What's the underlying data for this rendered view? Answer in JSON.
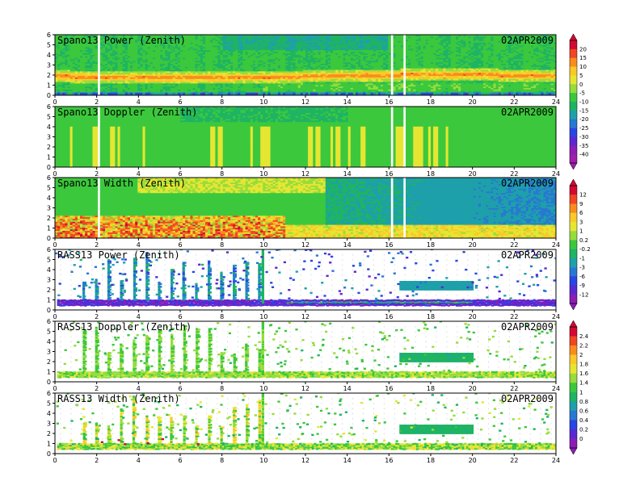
{
  "chart_data": [
    {
      "type": "heatmap",
      "title": "Spano13 Power (Zenith)",
      "date": "02APR2009",
      "x_ticks": [
        "0",
        "2",
        "4",
        "6",
        "8",
        "10",
        "12",
        "14",
        "16",
        "18",
        "20",
        "22",
        "24"
      ],
      "y_ticks": [
        "0",
        "1",
        "2",
        "3",
        "4",
        "5",
        "6"
      ],
      "xlim": [
        0,
        24
      ],
      "ylim": [
        0,
        6
      ],
      "colorbar_ticks": [
        "20",
        "15",
        "10",
        "5",
        "0",
        "-5",
        "-10",
        "-15",
        "-20",
        "-25",
        "-30",
        "-35",
        "-40"
      ],
      "pattern": "power",
      "data_gaps_x": [
        2.1,
        16.1,
        16.7
      ],
      "features": "band of high power (yellow/orange/red) near 1.5-2.2 km across whole day; weak (blue/purple) bins near 0.2 km"
    },
    {
      "type": "heatmap",
      "title": "Spano13 Doppler (Zenith)",
      "date": "02APR2009",
      "x_ticks": [
        "0",
        "2",
        "4",
        "6",
        "8",
        "10",
        "12",
        "14",
        "16",
        "18",
        "20",
        "22",
        "24"
      ],
      "y_ticks": [
        "0",
        "1",
        "2",
        "3",
        "4",
        "5",
        "6"
      ],
      "xlim": [
        0,
        24
      ],
      "ylim": [
        0,
        6
      ],
      "pattern": "doppler",
      "data_gaps_x": [
        2.1,
        16.1,
        16.7
      ],
      "features": "mostly near-zero (green) with scattered yellow streaks below 4 km"
    },
    {
      "type": "heatmap",
      "title": "Spano13 Width (Zenith)",
      "date": "02APR2009",
      "x_ticks": [
        "0",
        "2",
        "4",
        "6",
        "8",
        "10",
        "12",
        "14",
        "16",
        "18",
        "20",
        "22",
        "24"
      ],
      "y_ticks": [
        "0",
        "1",
        "2",
        "3",
        "4",
        "5",
        "6"
      ],
      "xlim": [
        0,
        24
      ],
      "ylim": [
        0,
        6
      ],
      "colorbar_ticks": [
        "12",
        "9",
        "6",
        "3",
        "1",
        "0.2",
        "-0.2",
        "-1",
        "-3",
        "-6",
        "-9",
        "-12"
      ],
      "pattern": "width",
      "data_gaps_x": [
        2.1,
        16.1,
        16.7
      ],
      "features": "large widths (red/orange) below 2 km before 11 h; blue region upper right"
    },
    {
      "type": "heatmap",
      "title": "RASS13 Power (Zenith)",
      "date": "02APR2009",
      "x_ticks": [
        "0",
        "2",
        "4",
        "6",
        "8",
        "10",
        "12",
        "14",
        "16",
        "18",
        "20",
        "22",
        "24"
      ],
      "y_ticks": [
        "0",
        "1",
        "2",
        "3",
        "4",
        "5",
        "6"
      ],
      "xlim": [
        0,
        24
      ],
      "ylim": [
        0,
        6
      ],
      "pattern": "rass_power",
      "features": "purple band near 0.6-0.9 km; vertical blue/cyan streaks every ~0.6 h from 1-10 h; cyan band near 2.2-2.6 km from 16.5-20 h"
    },
    {
      "type": "heatmap",
      "title": "RASS13 Doppler (Zenith)",
      "date": "02APR2009",
      "x_ticks": [
        "0",
        "2",
        "4",
        "6",
        "8",
        "10",
        "12",
        "14",
        "16",
        "18",
        "20",
        "22",
        "24"
      ],
      "y_ticks": [
        "0",
        "1",
        "2",
        "3",
        "4",
        "5",
        "6"
      ],
      "xlim": [
        0,
        24
      ],
      "ylim": [
        0,
        6
      ],
      "colorbar_ticks": [
        "2.4",
        "2.2",
        "2",
        "1.8",
        "1.6",
        "1.4",
        "1",
        "0.8",
        "0.6",
        "0.4",
        "0.2",
        "0"
      ],
      "pattern": "rass_doppler",
      "features": "green vertical streaks from 1-10 h; teal band near 2.2-2.6 km from 16.5-20 h; green band near 0.7 km"
    },
    {
      "type": "heatmap",
      "title": "RASS13 Width (Zenith)",
      "date": "02APR2009",
      "x_ticks": [
        "0",
        "2",
        "4",
        "6",
        "8",
        "10",
        "12",
        "14",
        "16",
        "18",
        "20",
        "22",
        "24"
      ],
      "y_ticks": [
        "0",
        "1",
        "2",
        "3",
        "4",
        "5",
        "6"
      ],
      "xlim": [
        0,
        24
      ],
      "ylim": [
        0,
        6
      ],
      "pattern": "rass_width",
      "features": "green/yellow vertical streaks with red near 1 km around 2-4.5 h; teal band near 2.2-2.6 km from 16.5-20 h"
    }
  ],
  "colorbars": [
    {
      "ticks": [
        "20",
        "15",
        "10",
        "5",
        "0",
        "-5",
        "-10",
        "-15",
        "-20",
        "-25",
        "-30",
        "-35",
        "-40"
      ],
      "colors": [
        "#d20a32",
        "#f04623",
        "#fa8c1e",
        "#fac828",
        "#e6e632",
        "#96dc3c",
        "#3cc83c",
        "#1eb464",
        "#1ea0aa",
        "#2878d2",
        "#2846e6",
        "#5a28d2",
        "#8c1eb4",
        "#a01eaa"
      ]
    },
    {
      "ticks": [
        "12",
        "9",
        "6",
        "3",
        "1",
        "0.2",
        "-0.2",
        "-1",
        "-3",
        "-6",
        "-9",
        "-12"
      ],
      "colors": [
        "#d20a32",
        "#f04623",
        "#fa8c1e",
        "#fac828",
        "#e6e632",
        "#96dc3c",
        "#3cc83c",
        "#1eb464",
        "#1ea0aa",
        "#2878d2",
        "#2846e6",
        "#5a28d2",
        "#8c1eb4"
      ]
    },
    {
      "ticks": [
        "2.4",
        "2.2",
        "2",
        "1.8",
        "1.6",
        "1.4",
        "1",
        "0.8",
        "0.6",
        "0.4",
        "0.2",
        "0"
      ],
      "colors": [
        "#d20a32",
        "#f04623",
        "#fa8c1e",
        "#fac828",
        "#e6e632",
        "#96dc3c",
        "#3cc83c",
        "#1eb464",
        "#1ea0aa",
        "#2878d2",
        "#2846e6",
        "#5a28d2",
        "#8c1eb4"
      ]
    }
  ]
}
